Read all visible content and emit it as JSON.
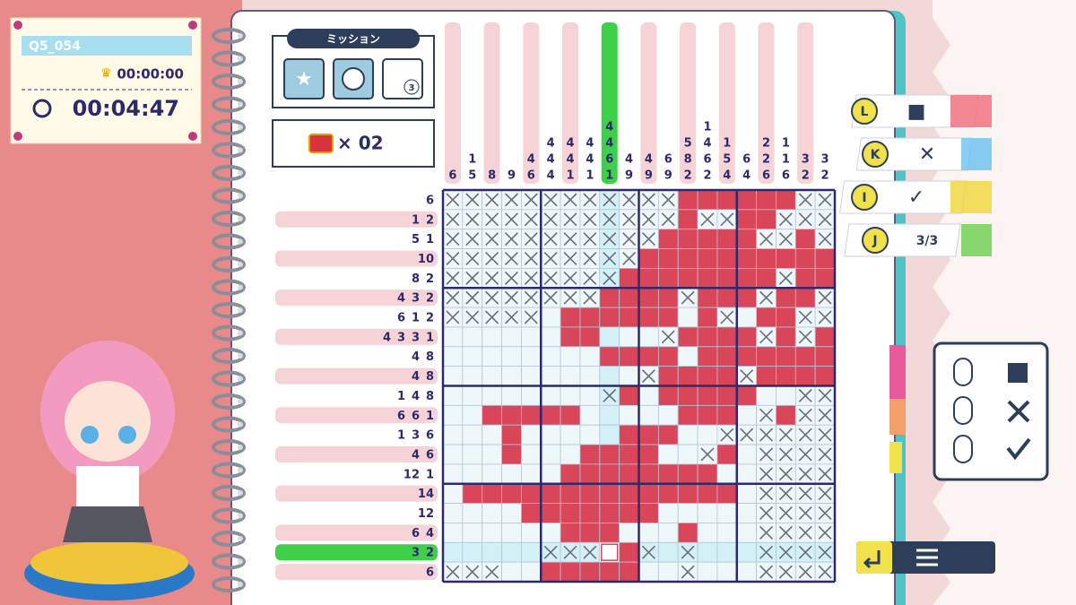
{
  "header": {
    "level": "Q5_054",
    "best_time": "00:00:00",
    "elapsed_time": "00:04:47"
  },
  "mission": {
    "title": "ミッション",
    "badge": "3",
    "treasure_count": "× 02"
  },
  "column_clues": [
    [
      6
    ],
    [
      1,
      5
    ],
    [
      8
    ],
    [
      9
    ],
    [
      4,
      6
    ],
    [
      4,
      4,
      4
    ],
    [
      4,
      4,
      1
    ],
    [
      4,
      4,
      1
    ],
    [
      4,
      4,
      6,
      1
    ],
    [
      4,
      9
    ],
    [
      4,
      9
    ],
    [
      6,
      9
    ],
    [
      5,
      8,
      2
    ],
    [
      1,
      4,
      6,
      2
    ],
    [
      1,
      5,
      4
    ],
    [
      6,
      4
    ],
    [
      2,
      2,
      6
    ],
    [
      1,
      1,
      6
    ],
    [
      3,
      2
    ],
    [
      3,
      2
    ]
  ],
  "row_clues": [
    [
      6
    ],
    [
      1,
      2
    ],
    [
      5,
      1
    ],
    [
      10
    ],
    [
      8,
      2
    ],
    [
      4,
      3,
      2
    ],
    [
      6,
      1,
      2
    ],
    [
      4,
      3,
      3,
      1
    ],
    [
      4,
      8
    ],
    [
      4,
      8
    ],
    [
      1,
      4,
      8
    ],
    [
      6,
      6,
      1
    ],
    [
      1,
      3,
      6
    ],
    [
      4,
      6
    ],
    [
      12,
      1
    ],
    [
      14
    ],
    [
      12
    ],
    [
      6,
      4
    ],
    [
      3,
      2
    ],
    [
      6
    ]
  ],
  "board": [
    "xxxxxxxxxxxx######xx",
    "xxxxxxxxxxxx#xx##xxx",
    "xxxxxxxxxxx#####xx#x",
    "xxxxxxxxxx##########",
    "xxxxxxxxx########x##",
    "xxxxxxxx####x###x##x",
    "xxxxx.######.#x.##xx",
    "......##...x####x#x#",
    "........####.#######",
    "..........x####x####",
    "........x#.#####..xx",
    "..#####.....###.x#xx",
    "...#.....###..xxxxxx",
    "...#...####..x#.xxxx",
    "......########..xxxx",
    ".##############.xxxx",
    "....#######.....xxxx",
    "......###...#...xxxx",
    ".....xxxo#x.x...xxxx",
    "xxx..#####..x...xxxx"
  ],
  "controls": [
    {
      "key": "L",
      "action": "■"
    },
    {
      "key": "K",
      "action": "✕"
    },
    {
      "key": "I",
      "action": "✓"
    },
    {
      "key": "J",
      "action": "3/3"
    }
  ]
}
